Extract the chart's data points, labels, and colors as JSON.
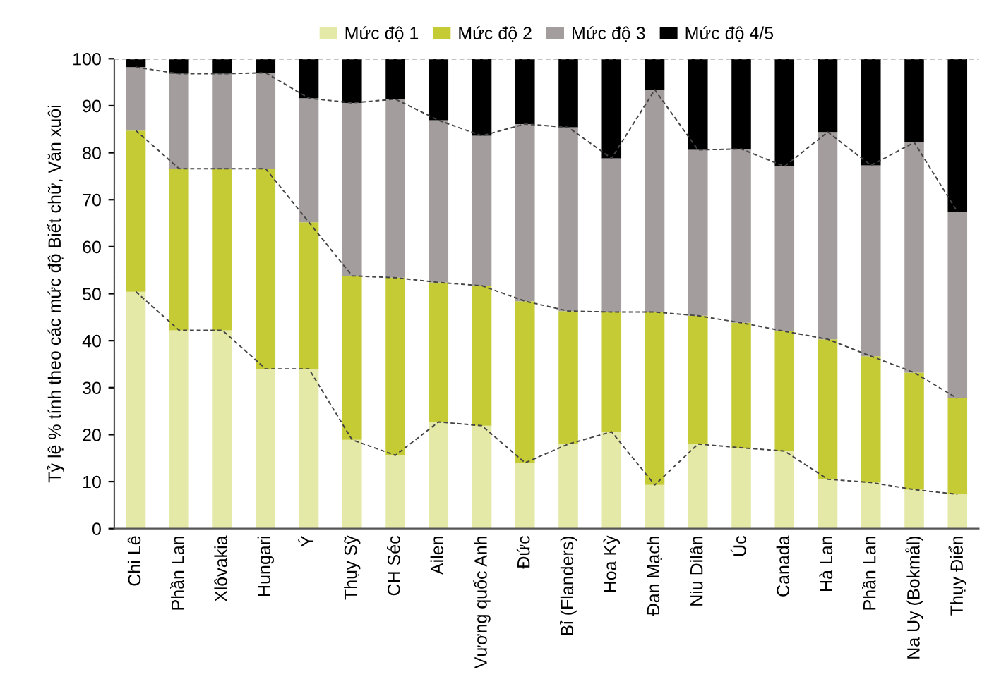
{
  "chart_data": {
    "type": "bar",
    "stacked": true,
    "ylabel": "Tỷ lệ % tính theo các mức độ Biết chữ, Văn xuôi",
    "categories": [
      "Chi Lê",
      "Phần Lan",
      "Xlôvakia",
      "Hungari",
      "Ý",
      "Thụy Sỹ",
      "CH Séc",
      "Ailen",
      "Vương quốc Anh",
      "Đức",
      "Bỉ (Flanders)",
      "Hoa Kỳ",
      "Đan Mạch",
      "Niu Dilân",
      "Úc",
      "Canada",
      "Hà Lan",
      "Phần Lan",
      "Na Uy (Bokmål)",
      "Thụy Điển"
    ],
    "series": [
      {
        "name": "Mức độ 1",
        "color": "#e4e9a8",
        "values": [
          50.4,
          42.2,
          42.2,
          34.0,
          34.0,
          18.9,
          15.6,
          22.7,
          21.9,
          14.0,
          18.0,
          20.6,
          9.3,
          18.0,
          17.2,
          16.5,
          10.5,
          9.8,
          8.3,
          7.3
        ]
      },
      {
        "name": "Mức độ 2",
        "color": "#c5cb35",
        "values": [
          34.3,
          34.4,
          34.4,
          42.6,
          31.2,
          34.9,
          37.8,
          29.7,
          29.8,
          34.4,
          28.3,
          25.5,
          36.8,
          27.3,
          26.6,
          25.5,
          29.8,
          26.9,
          24.9,
          20.4
        ]
      },
      {
        "name": "Mức độ 3",
        "color": "#a39d9d",
        "values": [
          13.5,
          20.2,
          20.2,
          20.4,
          26.4,
          36.8,
          38.0,
          34.5,
          31.9,
          37.7,
          39.1,
          32.7,
          47.3,
          35.3,
          37.0,
          35.1,
          44.1,
          40.6,
          49.0,
          39.7
        ]
      },
      {
        "name": "Mức độ 4/5",
        "color": "#000000",
        "values": [
          1.8,
          3.2,
          3.2,
          3.0,
          8.4,
          9.4,
          8.6,
          13.1,
          16.4,
          13.9,
          14.6,
          21.2,
          6.6,
          19.4,
          19.2,
          22.9,
          15.6,
          22.7,
          17.8,
          32.6
        ]
      }
    ],
    "ylim": [
      0,
      100
    ],
    "yticks": [
      0,
      10,
      20,
      30,
      40,
      50,
      60,
      70,
      80,
      90,
      100
    ],
    "grid": false,
    "legend": "top"
  }
}
